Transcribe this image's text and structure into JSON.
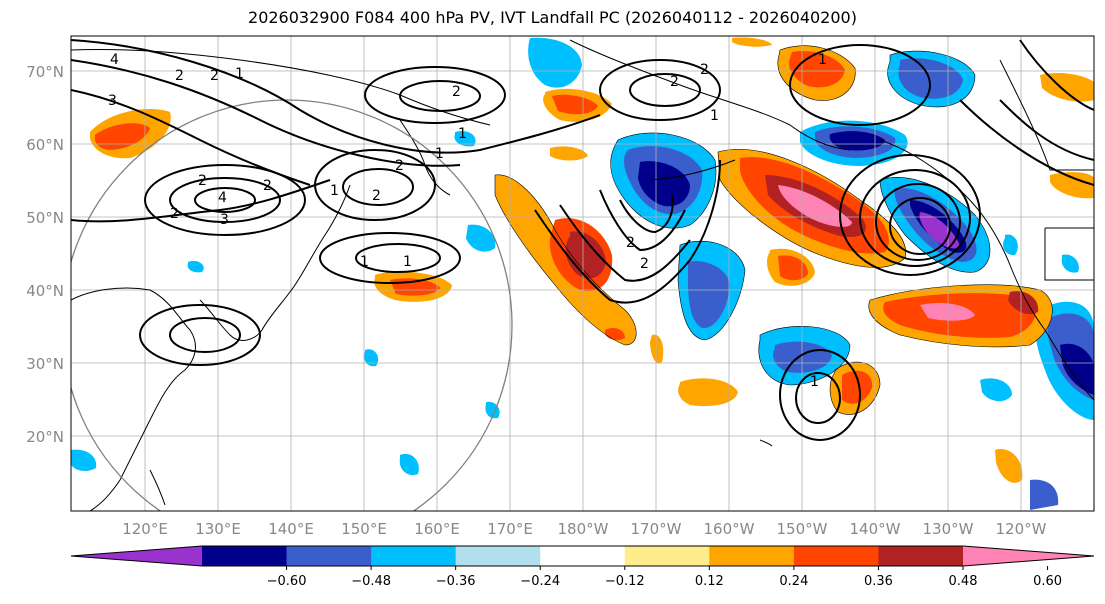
{
  "title": "2026032900 F084 400 hPa PV, IVT Landfall PC (2026040112 - 2026040200)",
  "lat_labels": [
    "70°N",
    "60°N",
    "50°N",
    "40°N",
    "30°N",
    "20°N"
  ],
  "lon_labels": [
    "120°E",
    "130°E",
    "140°E",
    "150°E",
    "160°E",
    "170°E",
    "180°W",
    "170°W",
    "160°W",
    "150°W",
    "140°W",
    "130°W",
    "120°W"
  ],
  "colorbar": {
    "ticks": [
      "−0.60",
      "−0.48",
      "−0.36",
      "−0.24",
      "−0.12",
      "0.12",
      "0.24",
      "0.36",
      "0.48",
      "0.60"
    ],
    "colors": [
      "#9a32cd",
      "#00008b",
      "#3a5fcd",
      "#00bfff",
      "#b2dfee",
      "#ffffff",
      "#ffec8b",
      "#ffa500",
      "#ff4500",
      "#b22222",
      "#ff83b4"
    ]
  },
  "contour_labels": [
    "4",
    "2",
    "2",
    "1",
    "3",
    "2",
    "2",
    "2",
    "1",
    "2",
    "4",
    "3",
    "1",
    "2",
    "2",
    "1",
    "1",
    "1",
    "2",
    "2",
    "2",
    "1",
    "2",
    "1",
    "1"
  ],
  "colors": {
    "contour": "#000000",
    "grid": "#b0b0b0",
    "circle": "#808080",
    "coast": "#000000"
  }
}
